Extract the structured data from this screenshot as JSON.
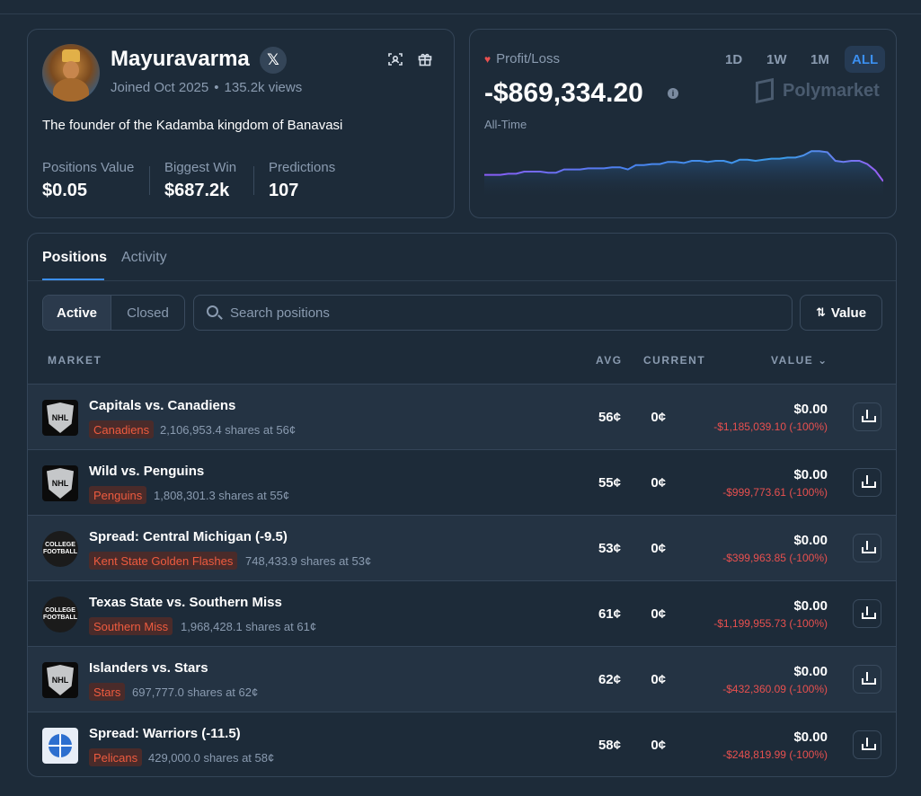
{
  "profile": {
    "username": "Mayuravarma",
    "x_badge": "𝕏",
    "joined": "Joined Oct 2025",
    "views": "135.2k views",
    "bio": "The founder of the Kadamba kingdom of Banavasi",
    "stats": [
      {
        "label": "Positions Value",
        "value": "$0.05"
      },
      {
        "label": "Biggest Win",
        "value": "$687.2k"
      },
      {
        "label": "Predictions",
        "value": "107"
      }
    ],
    "icons": [
      "scan-icon",
      "gift-icon"
    ]
  },
  "pnl": {
    "label": "Profit/Loss",
    "value": "-$869,334.20",
    "period": "All-Time",
    "ranges": [
      "1D",
      "1W",
      "1M",
      "ALL"
    ],
    "active_range": "ALL",
    "brand": "Polymarket",
    "line_color_start": "#8b5cf6",
    "line_color_end": "#3b8ff0"
  },
  "chart_data": {
    "type": "area",
    "x": [
      0,
      1,
      2,
      3,
      4,
      5,
      6,
      7,
      8,
      9,
      10,
      11,
      12,
      13,
      14,
      15,
      16,
      17,
      18,
      19,
      20,
      21,
      22,
      23,
      24,
      25,
      26,
      27,
      28,
      29,
      30,
      31,
      32,
      33,
      34,
      35,
      36,
      37,
      38,
      39,
      40,
      41,
      42,
      43,
      44,
      45,
      46,
      47,
      48,
      49,
      50
    ],
    "values": [
      22,
      22,
      22,
      23,
      23,
      25,
      25,
      25,
      24,
      24,
      27,
      27,
      27,
      28,
      28,
      28,
      29,
      29,
      27,
      31,
      31,
      32,
      32,
      34,
      34,
      33,
      35,
      35,
      34,
      35,
      35,
      33,
      36,
      36,
      35,
      36,
      37,
      37,
      38,
      38,
      40,
      44,
      44,
      43,
      35,
      34,
      35,
      35,
      32,
      26,
      16
    ]
  },
  "positions": {
    "tabs": [
      "Positions",
      "Activity"
    ],
    "filters": [
      "Active",
      "Closed"
    ],
    "search_placeholder": "Search positions",
    "sort_label": "Value",
    "columns": {
      "market": "MARKET",
      "avg": "AVG",
      "current": "CURRENT",
      "value": "VALUE"
    },
    "rows": [
      {
        "logo": "nhl",
        "title": "Capitals vs. Canadiens",
        "outcome": "Canadiens",
        "shares": "2,106,953.4 shares at 56¢",
        "avg": "56¢",
        "current": "0¢",
        "value": "$0.00",
        "pnl": "-$1,185,039.10 (-100%)"
      },
      {
        "logo": "nhl",
        "title": "Wild vs. Penguins",
        "outcome": "Penguins",
        "shares": "1,808,301.3 shares at 55¢",
        "avg": "55¢",
        "current": "0¢",
        "value": "$0.00",
        "pnl": "-$999,773.61 (-100%)"
      },
      {
        "logo": "cfb",
        "title": "Spread: Central Michigan (-9.5)",
        "outcome": "Kent State Golden Flashes",
        "shares": "748,433.9 shares at 53¢",
        "avg": "53¢",
        "current": "0¢",
        "value": "$0.00",
        "pnl": "-$399,963.85 (-100%)"
      },
      {
        "logo": "cfb",
        "title": "Texas State vs. Southern Miss",
        "outcome": "Southern Miss",
        "shares": "1,968,428.1 shares at 61¢",
        "avg": "61¢",
        "current": "0¢",
        "value": "$0.00",
        "pnl": "-$1,199,955.73 (-100%)"
      },
      {
        "logo": "nhl",
        "title": "Islanders vs. Stars",
        "outcome": "Stars",
        "shares": "697,777.0 shares at 62¢",
        "avg": "62¢",
        "current": "0¢",
        "value": "$0.00",
        "pnl": "-$432,360.09 (-100%)"
      },
      {
        "logo": "nba",
        "title": "Spread: Warriors (-11.5)",
        "outcome": "Pelicans",
        "shares": "429,000.0 shares at 58¢",
        "avg": "58¢",
        "current": "0¢",
        "value": "$0.00",
        "pnl": "-$248,819.99 (-100%)"
      }
    ]
  }
}
